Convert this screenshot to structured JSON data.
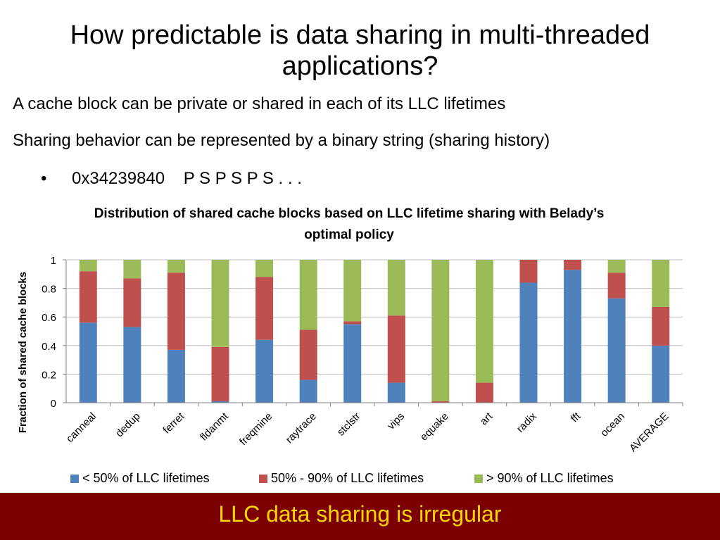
{
  "slide": {
    "title": "How predictable is data sharing in multi-threaded applications?",
    "line1": "A cache block can be private or shared in each of its LLC lifetimes",
    "line2": "Sharing behavior can be represented by a binary string (sharing history)",
    "bullet_marker": "•",
    "bullet_text": "0x34239840    P S P S P S . . .",
    "takeaway": "LLC data sharing is irregular"
  },
  "chart_data": {
    "type": "bar",
    "stacked": true,
    "title": "Distribution of shared cache blocks based on LLC lifetime sharing with Belady’s optimal policy",
    "ylabel": "Fraction of shared cache blocks",
    "ylim": [
      0,
      1
    ],
    "yticks": [
      0,
      0.2,
      0.4,
      0.6,
      0.8,
      1
    ],
    "ytick_labels": [
      "0",
      "0.2",
      "0.4",
      "0.6",
      "0.8",
      "1"
    ],
    "legend_position": "bottom",
    "categories": [
      "canneal",
      "dedup",
      "ferret",
      "fldanmt",
      "freqmine",
      "raytrace",
      "stclstr",
      "vips",
      "equake",
      "art",
      "radix",
      "fft",
      "ocean",
      "AVERAGE"
    ],
    "series": [
      {
        "name": "< 50% of LLC lifetimes",
        "color": "#4f81bd",
        "values": [
          0.56,
          0.53,
          0.37,
          0.01,
          0.44,
          0.16,
          0.55,
          0.14,
          0.0,
          0.0,
          0.84,
          0.93,
          0.73,
          0.4
        ]
      },
      {
        "name": "50% - 90% of LLC lifetimes",
        "color": "#c0504d",
        "values": [
          0.36,
          0.34,
          0.54,
          0.38,
          0.44,
          0.35,
          0.02,
          0.47,
          0.01,
          0.14,
          0.16,
          0.07,
          0.18,
          0.27
        ]
      },
      {
        "name": "> 90% of LLC lifetimes",
        "color": "#9bbb59",
        "values": [
          0.08,
          0.13,
          0.09,
          0.61,
          0.12,
          0.49,
          0.43,
          0.39,
          0.99,
          0.86,
          0.0,
          0.0,
          0.09,
          0.33
        ]
      }
    ]
  },
  "colors": {
    "takeaway_bar": "#7b0000",
    "takeaway_text": "#ffd700",
    "grid": "#bfbfbf"
  }
}
